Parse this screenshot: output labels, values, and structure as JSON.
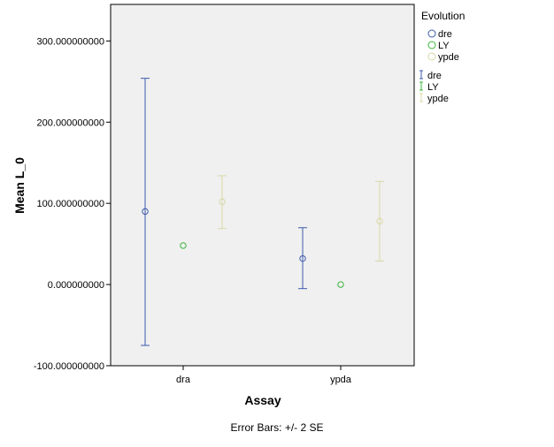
{
  "chart_data": {
    "type": "scatter",
    "xlabel": "Assay",
    "ylabel": "Mean L_0",
    "categories": [
      "dra",
      "ypda"
    ],
    "ylim": [
      -100,
      345
    ],
    "yticks": [
      -100,
      0,
      100,
      200,
      300
    ],
    "ytick_labels": [
      "-100.000000000",
      "0.000000000",
      "100.000000000",
      "200.000000000",
      "300.000000000"
    ],
    "grid": false,
    "legend_title": "Evolution",
    "legend_position": "right",
    "legend_marker_entries": [
      "dre",
      "LY",
      "ypde"
    ],
    "legend_errorbar_entries": [
      "dre",
      "LY",
      "ypde"
    ],
    "series": [
      {
        "name": "dre",
        "color": "#3c5aaa",
        "points": [
          {
            "category": "dra",
            "mean": 90,
            "low": -75,
            "high": 254
          },
          {
            "category": "ypda",
            "mean": 32,
            "low": -5,
            "high": 70
          }
        ]
      },
      {
        "name": "LY",
        "color": "#3cb43c",
        "points": [
          {
            "category": "dra",
            "mean": 48,
            "low": 48,
            "high": 48
          },
          {
            "category": "ypda",
            "mean": 0,
            "low": 0,
            "high": 0
          }
        ]
      },
      {
        "name": "ypde",
        "color": "#d8d8a8",
        "points": [
          {
            "category": "dra",
            "mean": 102,
            "low": 69,
            "high": 134
          },
          {
            "category": "ypda",
            "mean": 78,
            "low": 29,
            "high": 127
          }
        ]
      }
    ],
    "footnote": "Error Bars: +/- 2 SE"
  }
}
